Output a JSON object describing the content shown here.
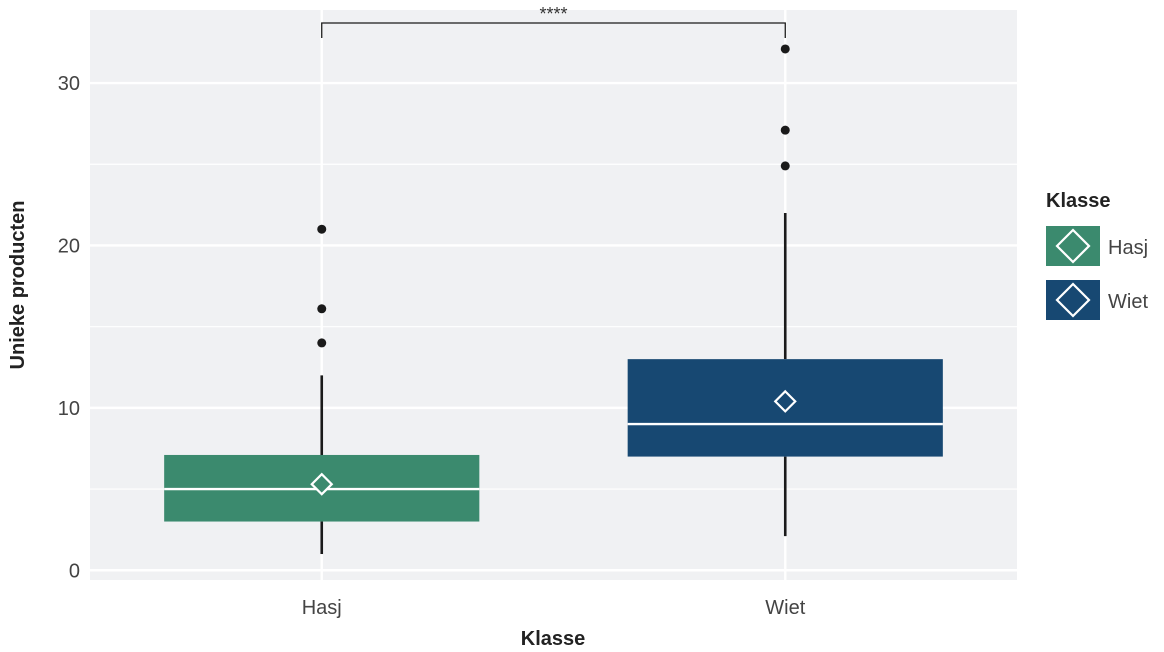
{
  "chart_data": {
    "type": "box",
    "xlabel": "Klasse",
    "ylabel": "Unieke producten",
    "ylim": [
      -0.6,
      34.5
    ],
    "yticks": [
      0,
      10,
      20,
      30
    ],
    "grid": true,
    "legend": {
      "title": "Klasse",
      "placement": "right",
      "entries": [
        "Hasj",
        "Wiet"
      ]
    },
    "categories": [
      "Hasj",
      "Wiet"
    ],
    "series": [
      {
        "name": "Hasj",
        "color": "#3b8a6e",
        "whisker_low": 1,
        "q1": 3,
        "median": 5,
        "q3": 7.1,
        "whisker_high": 12,
        "mean": 5.3,
        "outliers": [
          14,
          16.1,
          21
        ]
      },
      {
        "name": "Wiet",
        "color": "#174872",
        "whisker_low": 2.1,
        "q1": 7,
        "median": 9,
        "q3": 13,
        "whisker_high": 22,
        "mean": 10.4,
        "outliers": [
          24.9,
          27.1,
          32.1
        ]
      }
    ],
    "annotations": [
      {
        "type": "significance-bracket",
        "from": "Hasj",
        "to": "Wiet",
        "y": 33.7,
        "label": "****"
      }
    ]
  }
}
